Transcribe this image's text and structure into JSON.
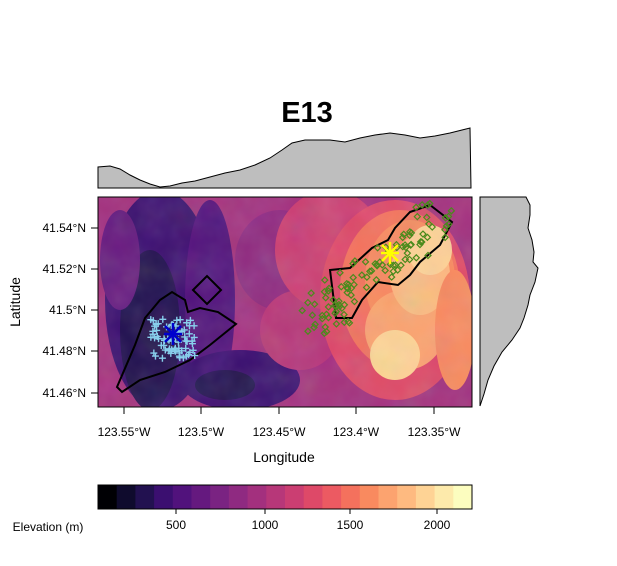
{
  "title": "E13",
  "x_axis": {
    "label": "Longitude",
    "ticks": [
      "123.55°W",
      "123.5°W",
      "123.45°W",
      "123.4°W",
      "123.35°W"
    ]
  },
  "y_axis": {
    "label": "Latitude",
    "ticks": [
      "41.54°N",
      "41.52°N",
      "41.5°N",
      "41.48°N",
      "41.46°N"
    ]
  },
  "legend": {
    "label": "Elevation (m)",
    "ticks": [
      "500",
      "1000",
      "1500",
      "2000"
    ],
    "colors": [
      "#000004",
      "#0f0b2d",
      "#221150",
      "#3b0f70",
      "#51127c",
      "#65197f",
      "#7a2382",
      "#8f2a81",
      "#a3307e",
      "#b73779",
      "#cb3e72",
      "#de4968",
      "#ec5a62",
      "#f4715d",
      "#f98a5f",
      "#fca36f",
      "#feba80",
      "#fed395",
      "#fdeaab",
      "#fcfdbf"
    ]
  },
  "markers": {
    "group_a": {
      "symbol": "plus",
      "color": "#87ceeb",
      "center_symbol": "asterisk",
      "center_color": "#0000cd"
    },
    "group_b": {
      "symbol": "diamond",
      "color": "#4a8b1c",
      "center_symbol": "asterisk",
      "center_color": "#ffff00"
    }
  },
  "chart_data": {
    "type": "heatmap",
    "title": "E13",
    "xlabel": "Longitude",
    "ylabel": "Latitude",
    "xlim": [
      -123.567,
      -123.327
    ],
    "ylim": [
      41.452,
      41.555
    ],
    "legend_label": "Elevation (m)",
    "legend_range": [
      150,
      2180
    ],
    "centers": [
      {
        "lon": -123.518,
        "lat": 41.488,
        "color": "#0000cd"
      },
      {
        "lon": -123.381,
        "lat": 41.527,
        "color": "#ffff00"
      }
    ]
  }
}
